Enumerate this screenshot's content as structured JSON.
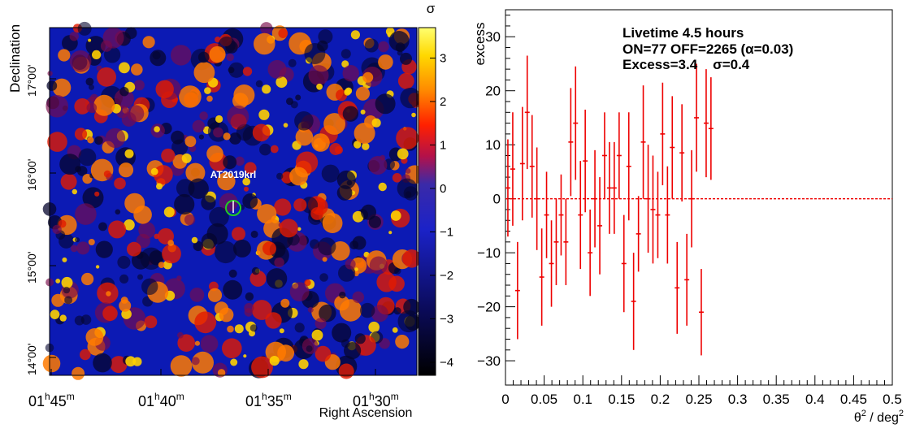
{
  "chart_data": [
    {
      "type": "heatmap",
      "xlabel": "Right Ascension",
      "ylabel": "Declination",
      "colorbar_label": "σ",
      "colorbar_ticks": [
        -4,
        -3,
        -2,
        -1,
        0,
        1,
        2,
        3
      ],
      "colorbar_range": [
        -4.3,
        3.7
      ],
      "x_ticks": [
        {
          "h": "01",
          "m": "45"
        },
        {
          "h": "01",
          "m": "40"
        },
        {
          "h": "01",
          "m": "35"
        },
        {
          "h": "01",
          "m": "30"
        }
      ],
      "y_ticks": [
        "14°00'",
        "15°00'",
        "16°00'",
        "17°00'"
      ],
      "source_label": "AT2019krl",
      "colors": {
        "marker": "#22cc22",
        "label": "#ffffff"
      }
    },
    {
      "type": "scatter",
      "title_lines": [
        "Livetime 4.5 hours",
        "ON=77 OFF=2265 (α=0.03)",
        "Excess=3.4    σ=0.4"
      ],
      "xlabel_base": "θ",
      "xlabel_sup1": "2",
      "xlabel_mid": " / deg",
      "xlabel_sup2": "2",
      "ylabel": "excess",
      "xlim": [
        0,
        0.5
      ],
      "ylim": [
        -34.5,
        35
      ],
      "x_ticks": [
        "0",
        "0.05",
        "0.1",
        "0.15",
        "0.2",
        "0.25",
        "0.3",
        "0.35",
        "0.4",
        "0.45",
        "0.5"
      ],
      "y_ticks": [
        "−30",
        "−20",
        "−10",
        "0",
        "10",
        "20",
        "30"
      ],
      "color": "#ee0000",
      "bin_width": 0.00625,
      "points": [
        {
          "x": 0.0031,
          "y": 2,
          "err": 9
        },
        {
          "x": 0.0094,
          "y": 5.5,
          "err": 10.5
        },
        {
          "x": 0.0156,
          "y": -17,
          "err": 9
        },
        {
          "x": 0.0219,
          "y": 6.5,
          "err": 10.5
        },
        {
          "x": 0.0281,
          "y": 16,
          "err": 10.5
        },
        {
          "x": 0.0344,
          "y": 6,
          "err": 9.5
        },
        {
          "x": 0.0406,
          "y": 0,
          "err": 9.5
        },
        {
          "x": 0.0469,
          "y": -14.5,
          "err": 9
        },
        {
          "x": 0.0531,
          "y": -3,
          "err": 8
        },
        {
          "x": 0.0594,
          "y": -12,
          "err": 8
        },
        {
          "x": 0.0656,
          "y": -8,
          "err": 8
        },
        {
          "x": 0.0719,
          "y": -3,
          "err": 7.5
        },
        {
          "x": 0.0781,
          "y": -8,
          "err": 8
        },
        {
          "x": 0.0844,
          "y": 10.5,
          "err": 10
        },
        {
          "x": 0.0906,
          "y": 14,
          "err": 10.5
        },
        {
          "x": 0.0969,
          "y": -3,
          "err": 10
        },
        {
          "x": 0.1031,
          "y": 7,
          "err": 9.5
        },
        {
          "x": 0.1094,
          "y": -10,
          "err": 8
        },
        {
          "x": 0.1156,
          "y": 0,
          "err": 9
        },
        {
          "x": 0.1219,
          "y": -5,
          "err": 9
        },
        {
          "x": 0.1281,
          "y": 8,
          "err": 8
        },
        {
          "x": 0.1344,
          "y": 2,
          "err": 8.5
        },
        {
          "x": 0.1406,
          "y": 2,
          "err": 8.5
        },
        {
          "x": 0.1469,
          "y": 8,
          "err": 8
        },
        {
          "x": 0.1531,
          "y": -12,
          "err": 9
        },
        {
          "x": 0.1594,
          "y": 6,
          "err": 10
        },
        {
          "x": 0.1656,
          "y": -19,
          "err": 9
        },
        {
          "x": 0.1719,
          "y": -6.5,
          "err": 7
        },
        {
          "x": 0.1781,
          "y": 10.5,
          "err": 10.5
        },
        {
          "x": 0.1844,
          "y": 0,
          "err": 10
        },
        {
          "x": 0.1906,
          "y": -2,
          "err": 10
        },
        {
          "x": 0.1969,
          "y": -3,
          "err": 8
        },
        {
          "x": 0.2031,
          "y": 12,
          "err": 9.5
        },
        {
          "x": 0.2094,
          "y": -3,
          "err": 9
        },
        {
          "x": 0.2156,
          "y": 9.5,
          "err": 9.5
        },
        {
          "x": 0.2219,
          "y": -16.5,
          "err": 8.5
        },
        {
          "x": 0.2281,
          "y": 8.5,
          "err": 9
        },
        {
          "x": 0.2344,
          "y": -15,
          "err": 8.5
        },
        {
          "x": 0.2406,
          "y": 0,
          "err": 9
        },
        {
          "x": 0.2469,
          "y": 15,
          "err": 10
        },
        {
          "x": 0.2531,
          "y": -21,
          "err": 8
        },
        {
          "x": 0.2594,
          "y": 14,
          "err": 10
        },
        {
          "x": 0.2656,
          "y": 13,
          "err": 9.5
        }
      ]
    }
  ]
}
